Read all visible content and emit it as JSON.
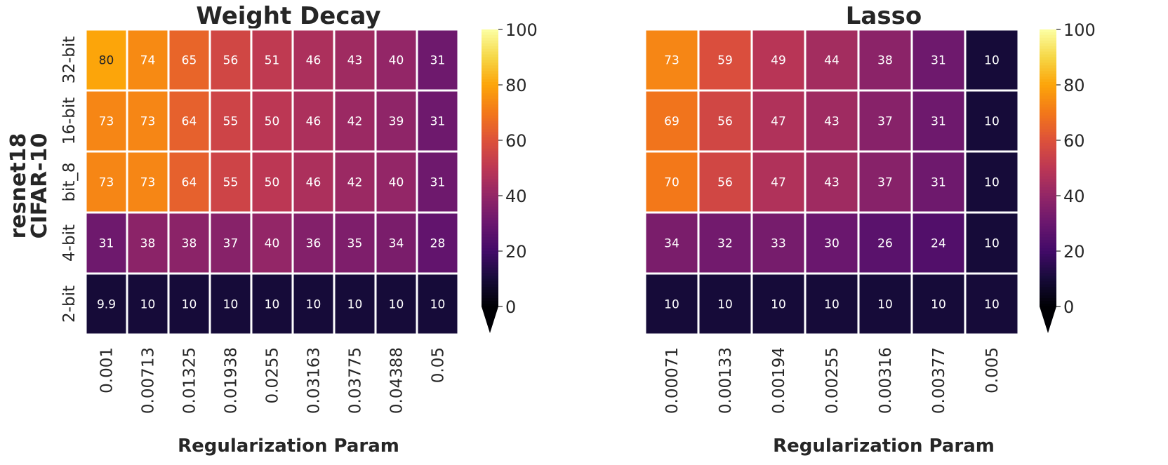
{
  "side_label": {
    "line1": "resnet18",
    "line2": "CIFAR-10"
  },
  "colorbar_ticks": [
    "0",
    "20",
    "40",
    "60",
    "80",
    "100"
  ],
  "chart_data": [
    {
      "type": "heatmap",
      "title": "Weight Decay",
      "xlabel": "Regularization Param",
      "ylabel": "",
      "rows": [
        "32-bit",
        "16-bit",
        "bit_8",
        "4-bit",
        "2-bit"
      ],
      "columns": [
        "0.001",
        "0.00713",
        "0.01325",
        "0.01938",
        "0.0255",
        "0.03163",
        "0.03775",
        "0.04388",
        "0.05"
      ],
      "values": [
        [
          80,
          74,
          65,
          56,
          51,
          46,
          43,
          40,
          31
        ],
        [
          73,
          73,
          64,
          55,
          50,
          46,
          42,
          39,
          31
        ],
        [
          73,
          73,
          64,
          55,
          50,
          46,
          42,
          40,
          31
        ],
        [
          31,
          38,
          38,
          37,
          40,
          36,
          35,
          34,
          28
        ],
        [
          9.9,
          10,
          10,
          10,
          10,
          10,
          10,
          10,
          10
        ]
      ],
      "colormap": "inferno",
      "vmin": 0,
      "vmax": 100
    },
    {
      "type": "heatmap",
      "title": "Lasso",
      "xlabel": "Regularization Param",
      "ylabel": "",
      "rows": [
        "32-bit",
        "16-bit",
        "bit_8",
        "4-bit",
        "2-bit"
      ],
      "columns": [
        "0.00071",
        "0.00133",
        "0.00194",
        "0.00255",
        "0.00316",
        "0.00377",
        "0.005"
      ],
      "values": [
        [
          73,
          59,
          49,
          44,
          38,
          31,
          10
        ],
        [
          69,
          56,
          47,
          43,
          37,
          31,
          10
        ],
        [
          70,
          56,
          47,
          43,
          37,
          31,
          10
        ],
        [
          34,
          32,
          33,
          30,
          26,
          24,
          10
        ],
        [
          10,
          10,
          10,
          10,
          10,
          10,
          10
        ]
      ],
      "colormap": "inferno",
      "vmin": 0,
      "vmax": 100
    }
  ]
}
